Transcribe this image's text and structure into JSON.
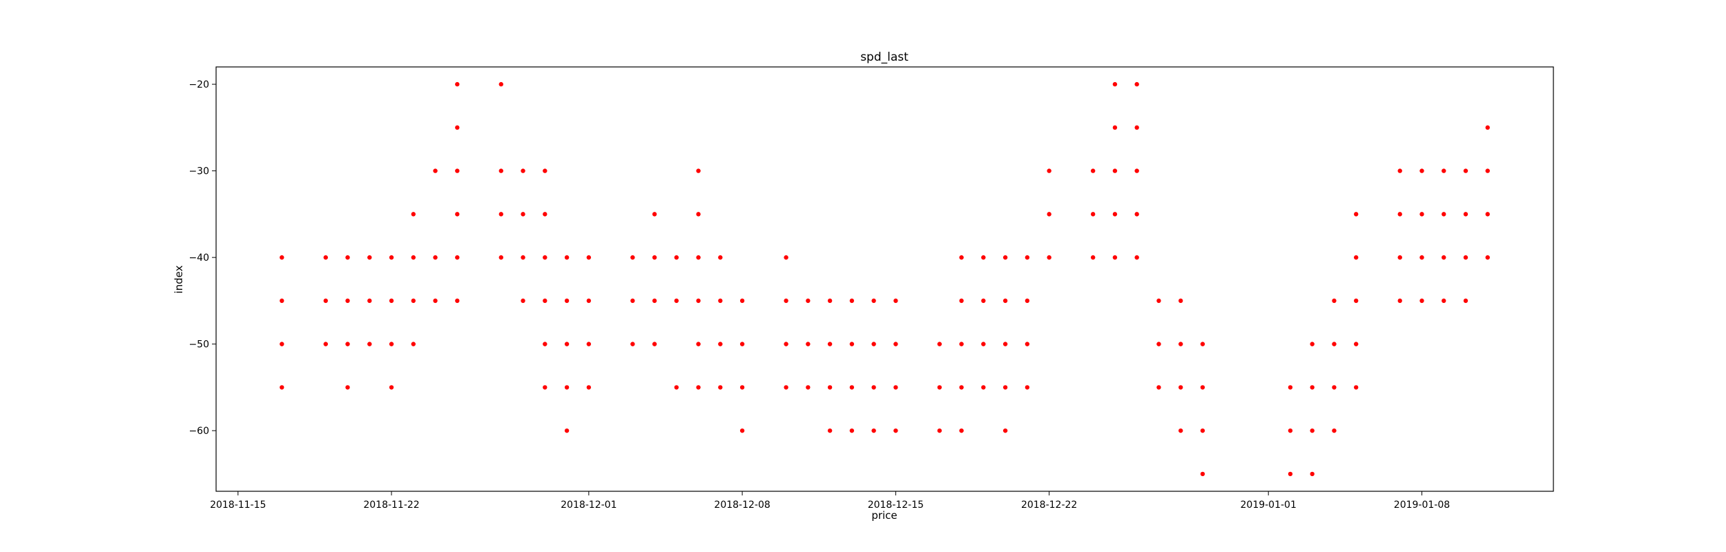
{
  "chart_data": {
    "type": "scatter",
    "title": "spd_last",
    "xlabel": "price",
    "ylabel": "index",
    "x_axis_type": "date",
    "xlim": [
      "2018-11-14",
      "2019-01-14"
    ],
    "ylim": [
      -67,
      -18
    ],
    "x_ticks": [
      "2018-11-15",
      "2018-11-22",
      "2018-12-01",
      "2018-12-08",
      "2018-12-15",
      "2018-12-22",
      "2019-01-01",
      "2019-01-08"
    ],
    "y_ticks": [
      -20,
      -30,
      -40,
      -50,
      -60
    ],
    "grid": false,
    "legend": "none",
    "colors": {
      "marker": "#ff0000",
      "axes": "#000000",
      "background": "#ffffff"
    },
    "series": [
      {
        "points": [
          [
            "2018-11-17",
            -40
          ],
          [
            "2018-11-17",
            -45
          ],
          [
            "2018-11-17",
            -50
          ],
          [
            "2018-11-17",
            -55
          ],
          [
            "2018-11-19",
            -40
          ],
          [
            "2018-11-19",
            -45
          ],
          [
            "2018-11-19",
            -50
          ],
          [
            "2018-11-20",
            -40
          ],
          [
            "2018-11-20",
            -45
          ],
          [
            "2018-11-20",
            -50
          ],
          [
            "2018-11-20",
            -55
          ],
          [
            "2018-11-21",
            -40
          ],
          [
            "2018-11-21",
            -45
          ],
          [
            "2018-11-21",
            -50
          ],
          [
            "2018-11-22",
            -40
          ],
          [
            "2018-11-22",
            -45
          ],
          [
            "2018-11-22",
            -50
          ],
          [
            "2018-11-22",
            -55
          ],
          [
            "2018-11-23",
            -35
          ],
          [
            "2018-11-23",
            -40
          ],
          [
            "2018-11-23",
            -45
          ],
          [
            "2018-11-23",
            -50
          ],
          [
            "2018-11-24",
            -30
          ],
          [
            "2018-11-24",
            -40
          ],
          [
            "2018-11-24",
            -45
          ],
          [
            "2018-11-25",
            -20
          ],
          [
            "2018-11-25",
            -25
          ],
          [
            "2018-11-25",
            -30
          ],
          [
            "2018-11-25",
            -35
          ],
          [
            "2018-11-25",
            -40
          ],
          [
            "2018-11-25",
            -45
          ],
          [
            "2018-11-27",
            -20
          ],
          [
            "2018-11-27",
            -30
          ],
          [
            "2018-11-27",
            -35
          ],
          [
            "2018-11-27",
            -40
          ],
          [
            "2018-11-28",
            -30
          ],
          [
            "2018-11-28",
            -35
          ],
          [
            "2018-11-28",
            -40
          ],
          [
            "2018-11-28",
            -45
          ],
          [
            "2018-11-29",
            -30
          ],
          [
            "2018-11-29",
            -35
          ],
          [
            "2018-11-29",
            -40
          ],
          [
            "2018-11-29",
            -45
          ],
          [
            "2018-11-29",
            -50
          ],
          [
            "2018-11-29",
            -55
          ],
          [
            "2018-11-30",
            -40
          ],
          [
            "2018-11-30",
            -45
          ],
          [
            "2018-11-30",
            -50
          ],
          [
            "2018-11-30",
            -55
          ],
          [
            "2018-11-30",
            -60
          ],
          [
            "2018-12-01",
            -40
          ],
          [
            "2018-12-01",
            -45
          ],
          [
            "2018-12-01",
            -50
          ],
          [
            "2018-12-01",
            -55
          ],
          [
            "2018-12-03",
            -40
          ],
          [
            "2018-12-03",
            -45
          ],
          [
            "2018-12-03",
            -50
          ],
          [
            "2018-12-04",
            -35
          ],
          [
            "2018-12-04",
            -40
          ],
          [
            "2018-12-04",
            -45
          ],
          [
            "2018-12-04",
            -50
          ],
          [
            "2018-12-05",
            -40
          ],
          [
            "2018-12-05",
            -45
          ],
          [
            "2018-12-05",
            -55
          ],
          [
            "2018-12-06",
            -30
          ],
          [
            "2018-12-06",
            -35
          ],
          [
            "2018-12-06",
            -40
          ],
          [
            "2018-12-06",
            -45
          ],
          [
            "2018-12-06",
            -50
          ],
          [
            "2018-12-06",
            -55
          ],
          [
            "2018-12-07",
            -40
          ],
          [
            "2018-12-07",
            -45
          ],
          [
            "2018-12-07",
            -50
          ],
          [
            "2018-12-07",
            -55
          ],
          [
            "2018-12-08",
            -45
          ],
          [
            "2018-12-08",
            -50
          ],
          [
            "2018-12-08",
            -55
          ],
          [
            "2018-12-08",
            -60
          ],
          [
            "2018-12-10",
            -40
          ],
          [
            "2018-12-10",
            -45
          ],
          [
            "2018-12-10",
            -50
          ],
          [
            "2018-12-10",
            -55
          ],
          [
            "2018-12-11",
            -45
          ],
          [
            "2018-12-11",
            -50
          ],
          [
            "2018-12-11",
            -55
          ],
          [
            "2018-12-12",
            -45
          ],
          [
            "2018-12-12",
            -50
          ],
          [
            "2018-12-12",
            -55
          ],
          [
            "2018-12-12",
            -60
          ],
          [
            "2018-12-13",
            -45
          ],
          [
            "2018-12-13",
            -50
          ],
          [
            "2018-12-13",
            -55
          ],
          [
            "2018-12-13",
            -60
          ],
          [
            "2018-12-14",
            -45
          ],
          [
            "2018-12-14",
            -50
          ],
          [
            "2018-12-14",
            -55
          ],
          [
            "2018-12-14",
            -60
          ],
          [
            "2018-12-15",
            -45
          ],
          [
            "2018-12-15",
            -50
          ],
          [
            "2018-12-15",
            -55
          ],
          [
            "2018-12-15",
            -60
          ],
          [
            "2018-12-17",
            -50
          ],
          [
            "2018-12-17",
            -55
          ],
          [
            "2018-12-17",
            -60
          ],
          [
            "2018-12-18",
            -40
          ],
          [
            "2018-12-18",
            -45
          ],
          [
            "2018-12-18",
            -50
          ],
          [
            "2018-12-18",
            -55
          ],
          [
            "2018-12-18",
            -60
          ],
          [
            "2018-12-19",
            -40
          ],
          [
            "2018-12-19",
            -45
          ],
          [
            "2018-12-19",
            -50
          ],
          [
            "2018-12-19",
            -55
          ],
          [
            "2018-12-20",
            -40
          ],
          [
            "2018-12-20",
            -45
          ],
          [
            "2018-12-20",
            -50
          ],
          [
            "2018-12-20",
            -55
          ],
          [
            "2018-12-20",
            -60
          ],
          [
            "2018-12-21",
            -40
          ],
          [
            "2018-12-21",
            -45
          ],
          [
            "2018-12-21",
            -50
          ],
          [
            "2018-12-21",
            -55
          ],
          [
            "2018-12-22",
            -30
          ],
          [
            "2018-12-22",
            -35
          ],
          [
            "2018-12-22",
            -40
          ],
          [
            "2018-12-24",
            -30
          ],
          [
            "2018-12-24",
            -35
          ],
          [
            "2018-12-24",
            -40
          ],
          [
            "2018-12-25",
            -20
          ],
          [
            "2018-12-25",
            -25
          ],
          [
            "2018-12-25",
            -30
          ],
          [
            "2018-12-25",
            -35
          ],
          [
            "2018-12-25",
            -40
          ],
          [
            "2018-12-26",
            -20
          ],
          [
            "2018-12-26",
            -25
          ],
          [
            "2018-12-26",
            -30
          ],
          [
            "2018-12-26",
            -35
          ],
          [
            "2018-12-26",
            -40
          ],
          [
            "2018-12-27",
            -45
          ],
          [
            "2018-12-27",
            -50
          ],
          [
            "2018-12-27",
            -55
          ],
          [
            "2018-12-28",
            -45
          ],
          [
            "2018-12-28",
            -50
          ],
          [
            "2018-12-28",
            -55
          ],
          [
            "2018-12-28",
            -60
          ],
          [
            "2018-12-29",
            -50
          ],
          [
            "2018-12-29",
            -55
          ],
          [
            "2018-12-29",
            -60
          ],
          [
            "2018-12-29",
            -65
          ],
          [
            "2019-01-02",
            -55
          ],
          [
            "2019-01-02",
            -60
          ],
          [
            "2019-01-02",
            -65
          ],
          [
            "2019-01-03",
            -50
          ],
          [
            "2019-01-03",
            -55
          ],
          [
            "2019-01-03",
            -60
          ],
          [
            "2019-01-03",
            -65
          ],
          [
            "2019-01-04",
            -45
          ],
          [
            "2019-01-04",
            -50
          ],
          [
            "2019-01-04",
            -55
          ],
          [
            "2019-01-04",
            -60
          ],
          [
            "2019-01-05",
            -35
          ],
          [
            "2019-01-05",
            -40
          ],
          [
            "2019-01-05",
            -45
          ],
          [
            "2019-01-05",
            -50
          ],
          [
            "2019-01-05",
            -55
          ],
          [
            "2019-01-07",
            -30
          ],
          [
            "2019-01-07",
            -35
          ],
          [
            "2019-01-07",
            -40
          ],
          [
            "2019-01-07",
            -45
          ],
          [
            "2019-01-08",
            -30
          ],
          [
            "2019-01-08",
            -35
          ],
          [
            "2019-01-08",
            -40
          ],
          [
            "2019-01-08",
            -45
          ],
          [
            "2019-01-09",
            -30
          ],
          [
            "2019-01-09",
            -35
          ],
          [
            "2019-01-09",
            -40
          ],
          [
            "2019-01-09",
            -45
          ],
          [
            "2019-01-10",
            -30
          ],
          [
            "2019-01-10",
            -35
          ],
          [
            "2019-01-10",
            -40
          ],
          [
            "2019-01-10",
            -45
          ],
          [
            "2019-01-11",
            -25
          ],
          [
            "2019-01-11",
            -30
          ],
          [
            "2019-01-11",
            -35
          ],
          [
            "2019-01-11",
            -40
          ]
        ]
      }
    ]
  }
}
